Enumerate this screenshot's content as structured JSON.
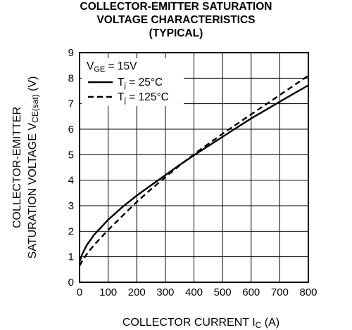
{
  "title": {
    "line1": "COLLECTOR-EMITTER SATURATION",
    "line2": "VOLTAGE CHARACTERISTICS",
    "line3": "(TYPICAL)"
  },
  "chart_data": {
    "type": "line",
    "xlabel_parts": [
      "COLLECTOR CURRENT I",
      "C",
      " (A)"
    ],
    "ylabel_line1": "COLLECTOR-EMITTER",
    "ylabel_line2_parts": [
      "SATURATION VOLTAGE V",
      "CE(sat)",
      " (V)"
    ],
    "xlim": [
      0,
      800
    ],
    "ylim": [
      0,
      9
    ],
    "x_ticks": [
      0,
      100,
      200,
      300,
      400,
      500,
      600,
      700,
      800
    ],
    "y_ticks": [
      0,
      1,
      2,
      3,
      4,
      5,
      6,
      7,
      8,
      9
    ],
    "grid": true,
    "legend_position": "top-left",
    "condition_parts": [
      "V",
      "GE",
      " = 15V"
    ],
    "series": [
      {
        "name_parts": [
          "T",
          "j",
          " = 25°C"
        ],
        "style": "solid",
        "x": [
          0,
          10,
          25,
          50,
          100,
          150,
          200,
          250,
          300,
          350,
          400,
          450,
          500,
          550,
          600,
          650,
          700,
          750,
          800
        ],
        "y": [
          0.8,
          1.12,
          1.45,
          1.85,
          2.45,
          2.95,
          3.4,
          3.8,
          4.2,
          4.6,
          4.98,
          5.34,
          5.7,
          6.06,
          6.42,
          6.75,
          7.08,
          7.4,
          7.72
        ]
      },
      {
        "name_parts": [
          "T",
          "j",
          " = 125°C"
        ],
        "style": "dashed",
        "x": [
          0,
          10,
          25,
          50,
          100,
          150,
          200,
          250,
          300,
          350,
          400,
          450,
          500,
          550,
          600,
          650,
          700,
          750,
          800
        ],
        "y": [
          0.65,
          0.85,
          1.1,
          1.45,
          2.05,
          2.6,
          3.15,
          3.65,
          4.12,
          4.58,
          5.02,
          5.42,
          5.82,
          6.2,
          6.58,
          6.96,
          7.34,
          7.72,
          8.1
        ]
      }
    ]
  }
}
